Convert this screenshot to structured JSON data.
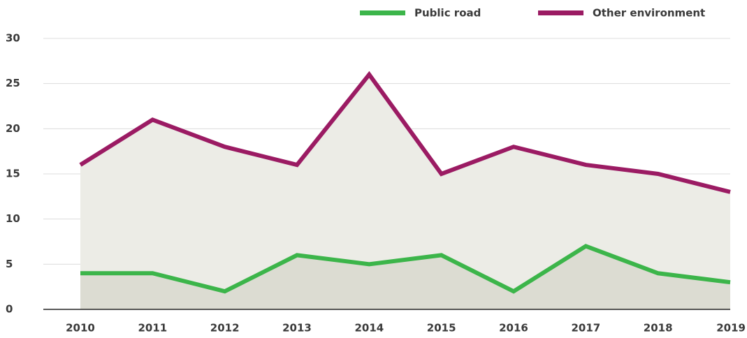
{
  "chart_data": {
    "type": "line",
    "categories": [
      "2010",
      "2011",
      "2012",
      "2013",
      "2014",
      "2015",
      "2016",
      "2017",
      "2018",
      "2019"
    ],
    "series": [
      {
        "name": "Public road",
        "color": "#3cb54a",
        "values": [
          4,
          4,
          2,
          6,
          5,
          6,
          2,
          7,
          4,
          3
        ]
      },
      {
        "name": "Other environment",
        "color": "#9b1b63",
        "values": [
          16,
          21,
          18,
          16,
          26,
          15,
          18,
          16,
          15,
          13
        ]
      }
    ],
    "ylim": [
      0,
      30
    ],
    "yticks": [
      0,
      5,
      10,
      15,
      20,
      25,
      30
    ],
    "grid": true,
    "legend": "top"
  }
}
